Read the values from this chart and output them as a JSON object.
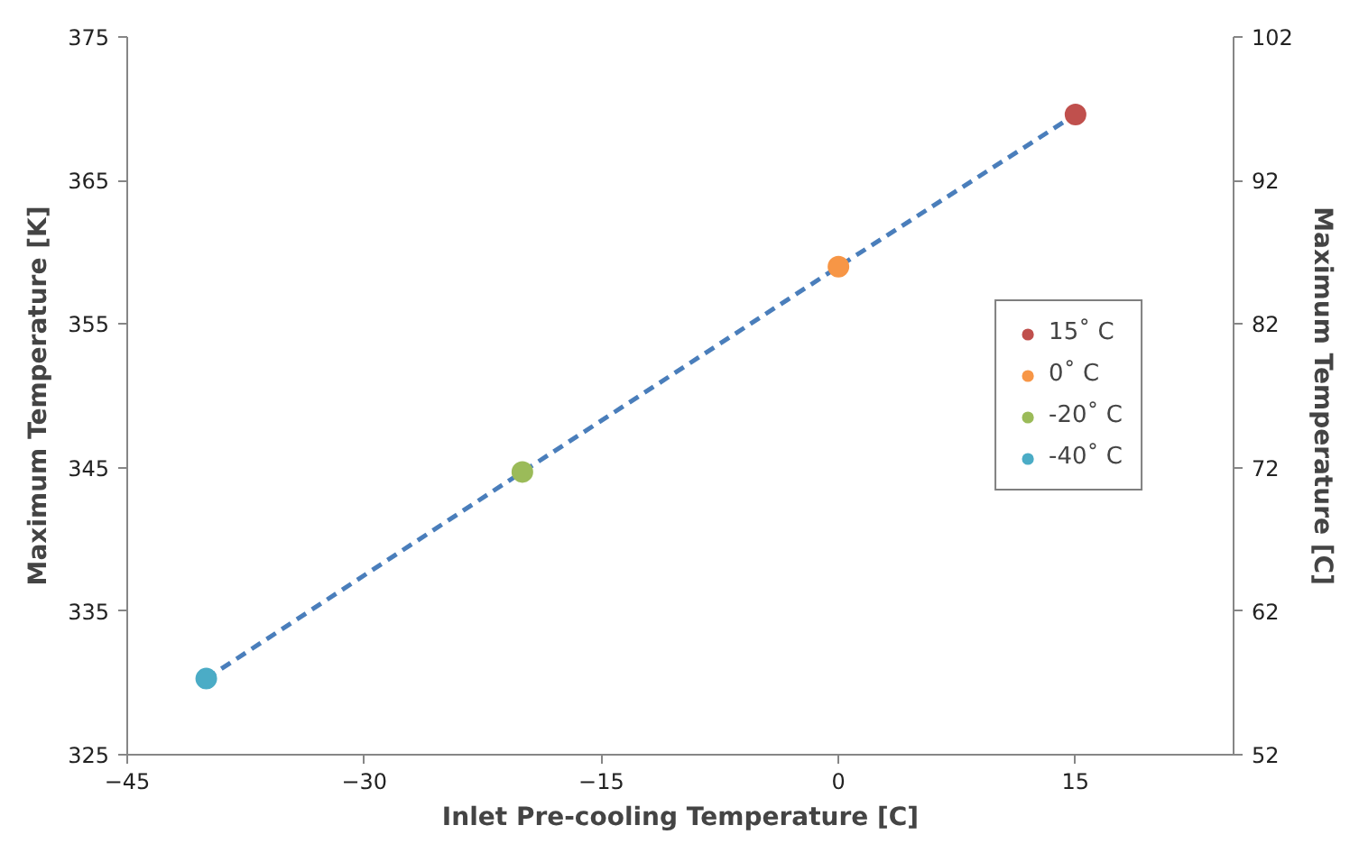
{
  "chart_data": {
    "type": "scatter",
    "xlabel": "Inlet Pre-cooling Temperature [C]",
    "ylabel": "Maximum Temperature [K]",
    "y2label": "Maximum Temperature [C]",
    "xlim": [
      -45,
      25
    ],
    "xticks": [
      -45,
      -30,
      -15,
      0,
      15
    ],
    "ylim": [
      325,
      375
    ],
    "yticks": [
      325,
      335,
      345,
      355,
      365,
      375
    ],
    "y2lim": [
      52,
      102
    ],
    "y2ticks": [
      52,
      62,
      72,
      82,
      92,
      102
    ],
    "series": [
      {
        "type": "line",
        "color": "#4a7ebb",
        "line_style": "dashed",
        "marker": "none",
        "x": [
          -40,
          -20,
          0,
          15
        ],
        "values": [
          330.3,
          344.7,
          359.0,
          369.6
        ]
      },
      {
        "name": "15˚ C",
        "color": "#c0504d",
        "x": [
          15
        ],
        "values": [
          369.6
        ]
      },
      {
        "name": "0˚ C",
        "color": "#f79646",
        "x": [
          0
        ],
        "values": [
          359.0
        ]
      },
      {
        "name": "-20˚ C",
        "color": "#9bbb59",
        "x": [
          -20
        ],
        "values": [
          344.7
        ]
      },
      {
        "name": "-40˚ C",
        "color": "#4bacc6",
        "x": [
          -40
        ],
        "values": [
          330.3
        ]
      }
    ],
    "marker": "circle",
    "grid": false,
    "legend": "right"
  }
}
